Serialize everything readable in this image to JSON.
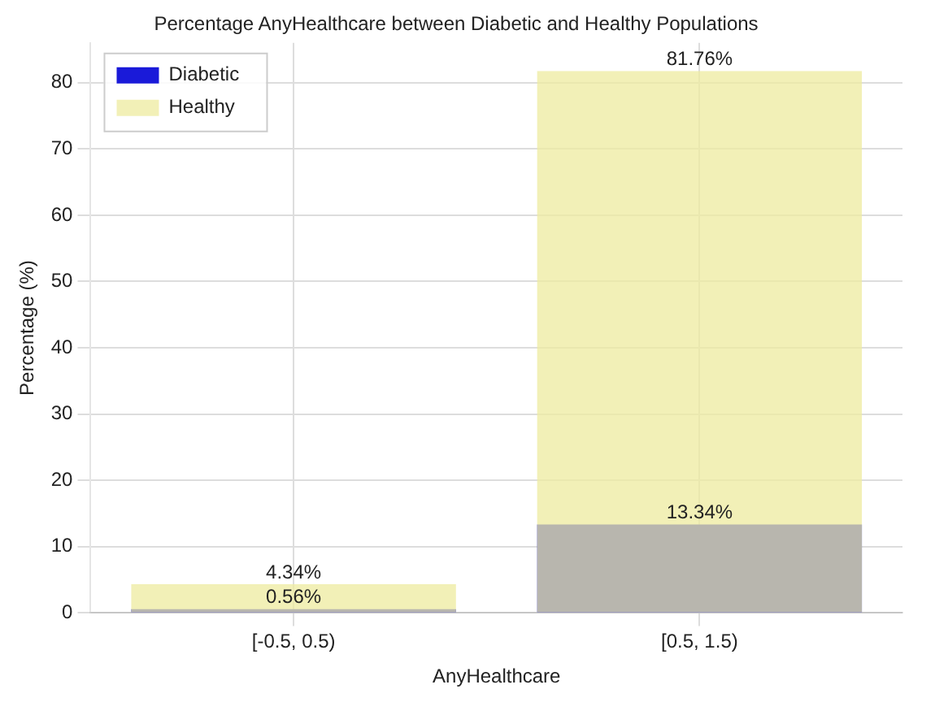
{
  "chart_data": {
    "type": "bar",
    "title": "Percentage AnyHealthcare between Diabetic and Healthy Populations",
    "xlabel": "AnyHealthcare",
    "ylabel": "Percentage (%)",
    "categories": [
      "[-0.5, 0.5)",
      "[0.5, 1.5)"
    ],
    "series": [
      {
        "name": "Diabetic",
        "color": "#1a1ad9",
        "values": [
          0.56,
          13.34
        ],
        "value_labels": [
          "0.56%",
          "13.34%"
        ]
      },
      {
        "name": "Healthy",
        "color": "#eeeb9f",
        "values": [
          4.34,
          81.76
        ],
        "value_labels": [
          "4.34%",
          "81.76%"
        ]
      }
    ],
    "ylim": [
      0,
      86
    ],
    "yticks": [
      0,
      10,
      20,
      30,
      40,
      50,
      60,
      70,
      80
    ],
    "grid": true,
    "legend": "top left"
  }
}
